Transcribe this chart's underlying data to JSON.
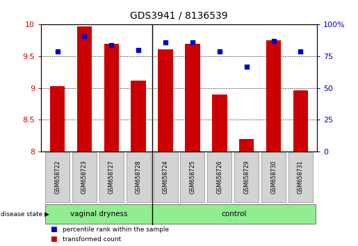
{
  "title": "GDS3941 / 8136539",
  "samples": [
    "GSM658722",
    "GSM658723",
    "GSM658727",
    "GSM658728",
    "GSM658724",
    "GSM658725",
    "GSM658726",
    "GSM658729",
    "GSM658730",
    "GSM658731"
  ],
  "transformed_count": [
    9.03,
    9.97,
    9.7,
    9.12,
    9.61,
    9.7,
    8.9,
    8.19,
    9.75,
    8.96
  ],
  "percentile_rank": [
    79,
    91,
    84,
    80,
    86,
    86,
    79,
    67,
    87,
    79
  ],
  "groups": [
    {
      "label": "vaginal dryness",
      "n_samples": 4,
      "color": "#90ee90"
    },
    {
      "label": "control",
      "n_samples": 6,
      "color": "#90ee90"
    }
  ],
  "ylim_left": [
    8.0,
    10.0
  ],
  "ylim_right": [
    0,
    100
  ],
  "yticks_left": [
    8.0,
    8.5,
    9.0,
    9.5,
    10.0
  ],
  "yticks_right": [
    0,
    25,
    50,
    75,
    100
  ],
  "bar_color": "#cc0000",
  "dot_color": "#0000cc",
  "bar_width": 0.55,
  "group_divider_idx": 4,
  "left_axis_color": "#cc0000",
  "right_axis_color": "#0000cc",
  "legend_bar_label": "transformed count",
  "legend_dot_label": "percentile rank within the sample",
  "disease_state_label": "disease state"
}
